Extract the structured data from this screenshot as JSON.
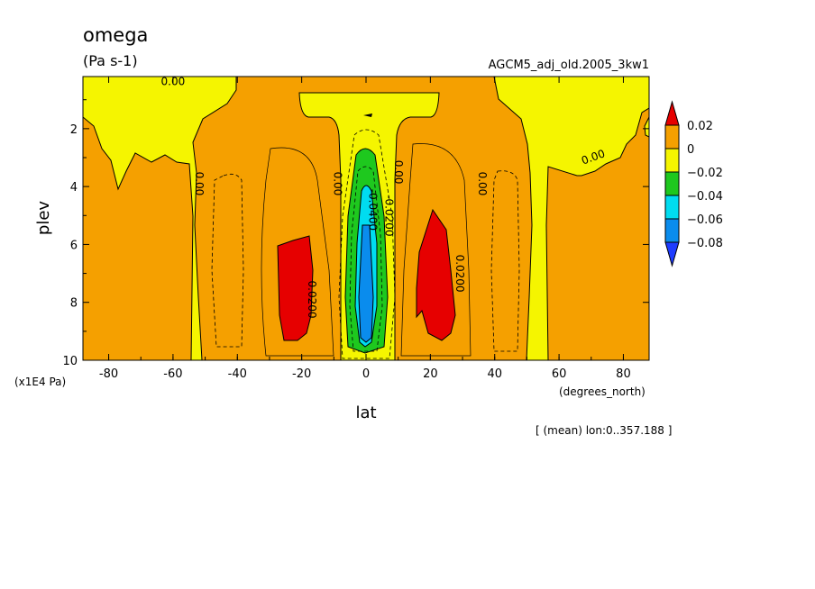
{
  "chart_data": {
    "type": "contour",
    "title": "omega",
    "units": "(Pa s-1)",
    "dataset": "AGCM5_adj_old.2005_3kw1",
    "xlabel": "lat",
    "ylabel": "plev",
    "x_units": "(degrees_north)",
    "y_units": "(x1E4 Pa)",
    "note": "[ (mean) lon:0..357.188 ]",
    "xlim": [
      -88,
      88
    ],
    "ylim": [
      10,
      0.2
    ],
    "x_ticks": [
      -80,
      -60,
      -40,
      -20,
      0,
      20,
      40,
      60,
      80
    ],
    "y_ticks": [
      2,
      4,
      6,
      8,
      10
    ],
    "x_tick_labels": [
      "-80",
      "-60",
      "-40",
      "-20",
      "0",
      "20",
      "40",
      "60",
      "80"
    ],
    "y_tick_labels": [
      "2",
      "4",
      "6",
      "8",
      "10"
    ],
    "colorbar": {
      "levels": [
        0.02,
        0,
        -0.02,
        -0.04,
        -0.06,
        -0.08
      ],
      "labels": [
        "0.02",
        "0",
        "−0.02",
        "−0.04",
        "−0.06",
        "−0.08"
      ],
      "colors": [
        "#e60000",
        "#f5a000",
        "#f5f500",
        "#1ec81e",
        "#00dcf0",
        "#0a8ced",
        "#1e3cff"
      ]
    },
    "contour_labels": [
      {
        "text": "0.00",
        "lat": -60,
        "plev": 0.5,
        "rotate": 0
      },
      {
        "text": "0.00",
        "lat": -53,
        "plev": 3.9,
        "rotate": 90
      },
      {
        "text": "0.00",
        "lat": -10,
        "plev": 3.9,
        "rotate": 90
      },
      {
        "text": "0.00",
        "lat": 9,
        "plev": 3.5,
        "rotate": 90
      },
      {
        "text": "0.00",
        "lat": 35,
        "plev": 3.9,
        "rotate": 90
      },
      {
        "text": "0.00",
        "lat": 71,
        "plev": 3.1,
        "rotate": -20
      },
      {
        "text": "0.0200",
        "lat": -18,
        "plev": 7.9,
        "rotate": 90
      },
      {
        "text": "0.0200",
        "lat": 28,
        "plev": 7.0,
        "rotate": 90
      },
      {
        "text": "-0.0200",
        "lat": 6,
        "plev": 5.0,
        "rotate": 90
      },
      {
        "text": "-0.0400",
        "lat": 1,
        "plev": 4.8,
        "rotate": 90
      }
    ]
  }
}
